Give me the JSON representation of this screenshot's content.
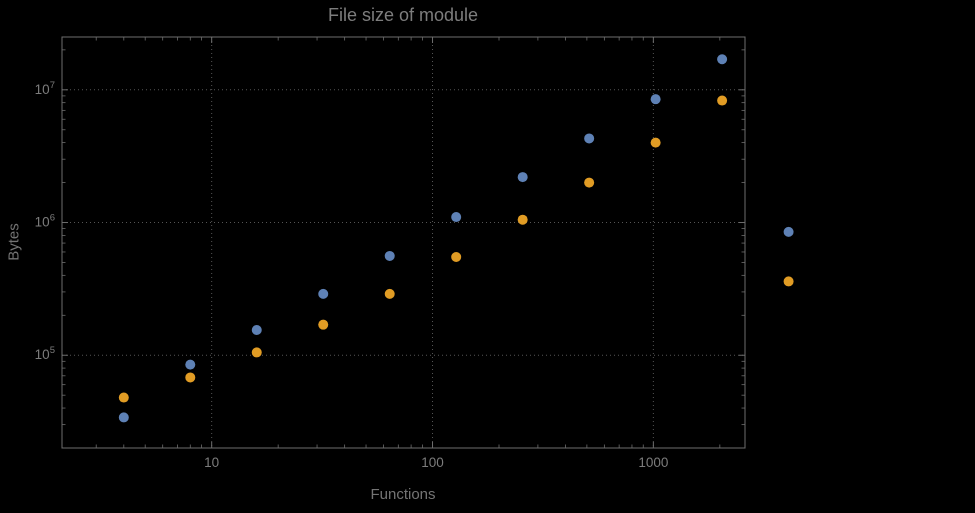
{
  "chart_data": {
    "type": "scatter",
    "title": "File size of module",
    "xlabel": "Functions",
    "ylabel": "Bytes",
    "x_scale": "log",
    "y_scale": "log",
    "xlim": [
      2.1,
      2600
    ],
    "ylim": [
      20000,
      25000000
    ],
    "grid": {
      "style": "dotted",
      "x_values": [
        10,
        100,
        1000
      ],
      "y_values": [
        100000,
        1000000,
        10000000
      ]
    },
    "x_ticks": [
      {
        "value": 10,
        "label": "10"
      },
      {
        "value": 100,
        "label": "100"
      },
      {
        "value": 1000,
        "label": "1000"
      }
    ],
    "y_ticks": [
      {
        "value": 100000,
        "mantissa": "10",
        "exponent": "5"
      },
      {
        "value": 1000000,
        "mantissa": "10",
        "exponent": "6"
      },
      {
        "value": 10000000,
        "mantissa": "10",
        "exponent": "7"
      }
    ],
    "legend": "none",
    "series": [
      {
        "name": "blue",
        "color": "#5E81B5",
        "x": [
          4,
          8,
          16,
          32,
          64,
          128,
          256,
          512,
          1024,
          2048,
          4096
        ],
        "y": [
          34000,
          85000,
          155000,
          290000,
          560000,
          1100000,
          2200000,
          4300000,
          8500000,
          17000000,
          850000
        ]
      },
      {
        "name": "orange",
        "color": "#E19C24",
        "x": [
          4,
          8,
          16,
          32,
          64,
          128,
          256,
          512,
          1024,
          2048,
          4096
        ],
        "y": [
          48000,
          68000,
          105000,
          170000,
          290000,
          550000,
          1050000,
          2000000,
          4000000,
          8300000,
          360000
        ]
      }
    ]
  },
  "colors": {
    "background": "#000000",
    "frame": "#6e6e6e",
    "grid": "#555555",
    "tick_text": "#7c7c7c",
    "title_text": "#7d7d7d",
    "label_text": "#747474"
  }
}
